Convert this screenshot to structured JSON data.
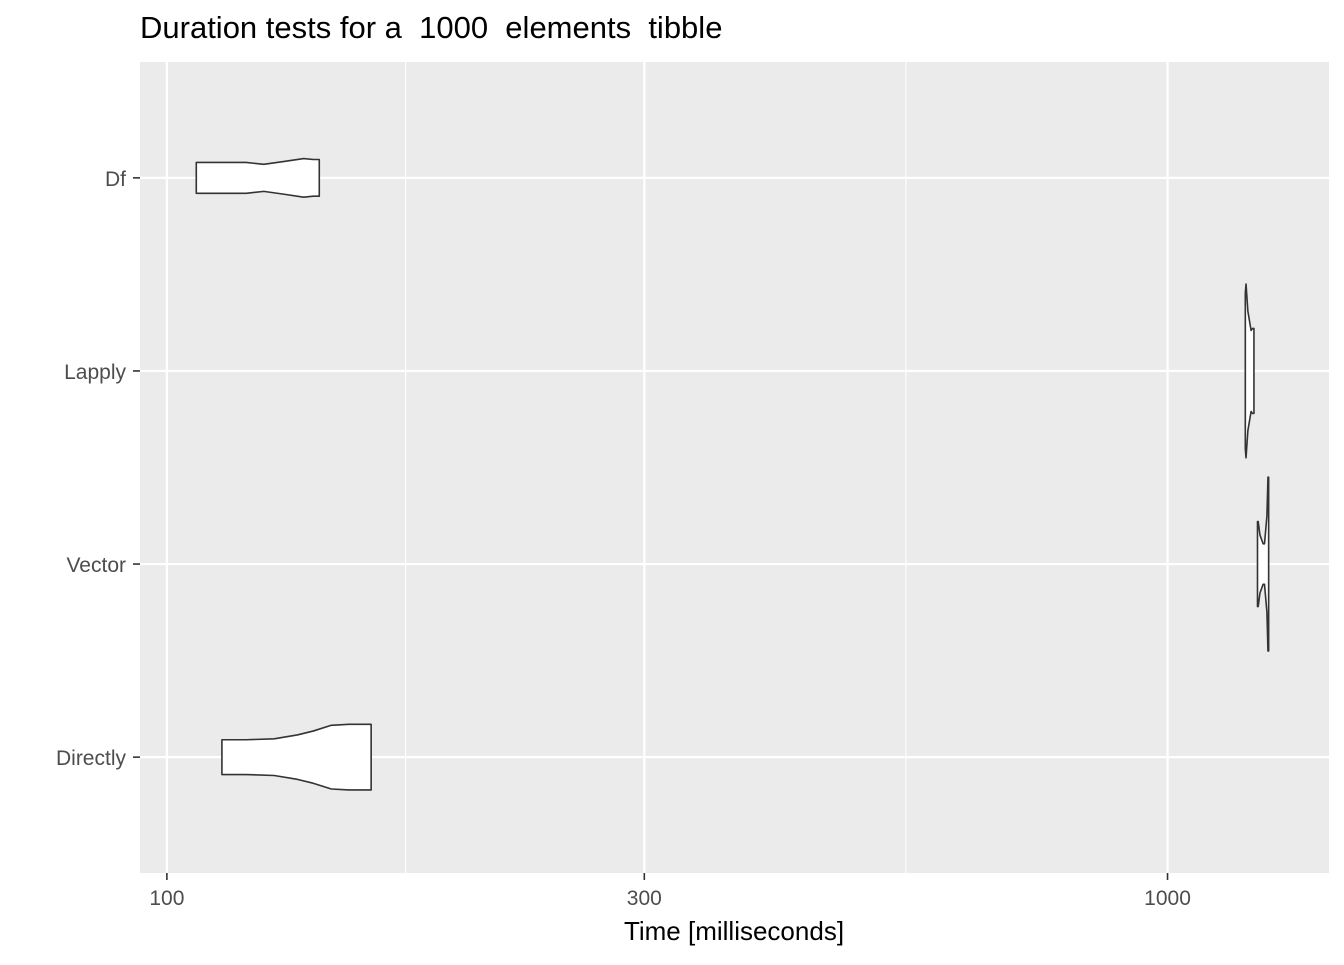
{
  "chart_data": {
    "type": "violin",
    "title": "Duration tests for a  1000  elements  tibble",
    "xlabel": "Time [milliseconds]",
    "ylabel": "",
    "x_scale": "log10",
    "xlim": [
      94,
      1450
    ],
    "x_ticks": [
      100,
      300,
      1000
    ],
    "x_tick_labels": [
      "100",
      "300",
      "1000"
    ],
    "x_minor_ticks": [
      173.2,
      547.7
    ],
    "categories": [
      "Directly",
      "Vector",
      "Lapply",
      "Df"
    ],
    "category_order_bottom_to_top": true,
    "grid": true,
    "legend": "none",
    "colors": {
      "panel": "#EBEBEB",
      "grid": "#FFFFFF",
      "outline": "#333333",
      "fill": "#FFFFFF",
      "axis_text": "#4D4D4D"
    },
    "series": [
      {
        "category": "Directly",
        "profile": [
          [
            113.5,
            0.18
          ],
          [
            120,
            0.18
          ],
          [
            128,
            0.19
          ],
          [
            135,
            0.23
          ],
          [
            140,
            0.27
          ],
          [
            146,
            0.33
          ],
          [
            152,
            0.34
          ],
          [
            160,
            0.34
          ]
        ]
      },
      {
        "category": "Vector",
        "profile": [
          [
            1230,
            0.44
          ],
          [
            1232,
            0.44
          ],
          [
            1237,
            0.3
          ],
          [
            1246,
            0.21
          ],
          [
            1250,
            0.21
          ],
          [
            1257,
            0.5
          ],
          [
            1260,
            0.9
          ],
          [
            1262,
            0.9
          ]
        ]
      },
      {
        "category": "Lapply",
        "profile": [
          [
            1196,
            0.81
          ],
          [
            1198,
            0.9
          ],
          [
            1203,
            0.62
          ],
          [
            1212,
            0.42
          ],
          [
            1216,
            0.44
          ],
          [
            1220,
            0.44
          ]
        ]
      },
      {
        "category": "Df",
        "profile": [
          [
            107,
            0.16
          ],
          [
            113,
            0.16
          ],
          [
            120,
            0.16
          ],
          [
            125,
            0.14
          ],
          [
            131,
            0.17
          ],
          [
            137,
            0.2
          ],
          [
            140,
            0.19
          ],
          [
            142,
            0.19
          ]
        ]
      }
    ]
  }
}
